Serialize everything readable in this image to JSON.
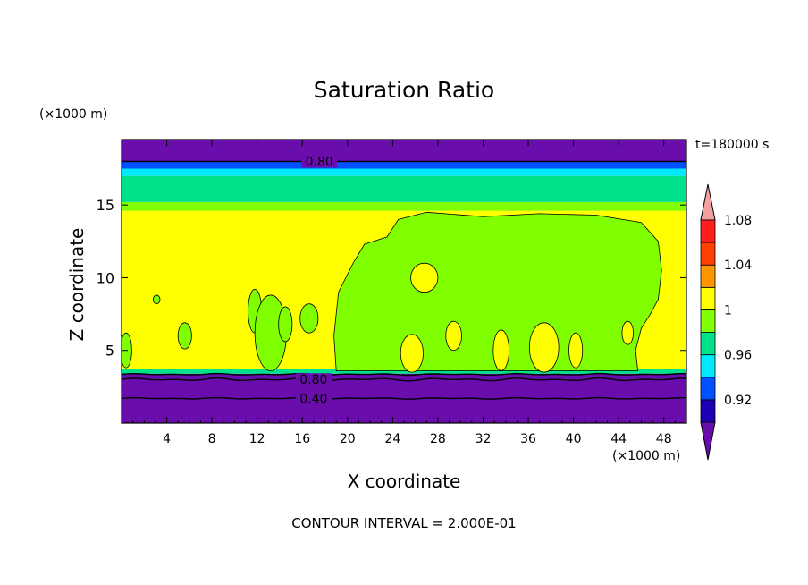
{
  "chart_data": {
    "type": "heatmap",
    "title": "Saturation Ratio",
    "xlabel": "X coordinate",
    "ylabel": "Z coordinate",
    "x_unit": "(×1000 m)",
    "z_unit": "(×1000 m)",
    "time_label": "t=180000 s",
    "xlim": [
      0,
      50
    ],
    "ylim": [
      0,
      19.5
    ],
    "x_ticks": [
      4,
      8,
      12,
      16,
      20,
      24,
      28,
      32,
      36,
      40,
      44,
      48
    ],
    "y_ticks": [
      5,
      10,
      15
    ],
    "contour_labels": [
      {
        "text": "0.80",
        "x": 17.5,
        "z": 18.0
      },
      {
        "text": "0.80",
        "x": 17.0,
        "z": 3.0
      },
      {
        "text": "0.40",
        "x": 17.0,
        "z": 1.7
      }
    ],
    "contour_interval": "CONTOUR INTERVAL = 2.000E-01",
    "colorbar": {
      "labels": [
        "0.92",
        "0.96",
        "1",
        "1.04",
        "1.08"
      ],
      "levels": [
        0.9,
        0.92,
        0.94,
        0.96,
        0.98,
        1.0,
        1.02,
        1.04,
        1.06,
        1.08,
        1.1
      ],
      "colors": [
        "#6a0dad",
        "#1e00b4",
        "#0050ff",
        "#00eaff",
        "#00e28a",
        "#80ff00",
        "#ffff00",
        "#ff9600",
        "#ff4000",
        "#ff1e1e",
        "#f5a0a0"
      ]
    },
    "bands": [
      {
        "z0": 0.0,
        "z1": 3.4,
        "value": 0.8
      },
      {
        "z0": 3.4,
        "z1": 3.7,
        "value": 0.97
      },
      {
        "z0": 3.7,
        "z1": 14.6,
        "value": 1.01
      },
      {
        "z0": 14.6,
        "z1": 15.2,
        "value": 0.99
      },
      {
        "z0": 15.2,
        "z1": 17.0,
        "value": 0.96
      },
      {
        "z0": 17.0,
        "z1": 17.5,
        "value": 0.94
      },
      {
        "z0": 17.5,
        "z1": 18.0,
        "value": 0.92
      },
      {
        "z0": 18.0,
        "z1": 19.5,
        "value": 0.8
      }
    ],
    "subsaturated_region": {
      "value": 0.99,
      "outline": [
        [
          19,
          3.6
        ],
        [
          18.8,
          6
        ],
        [
          19.2,
          9
        ],
        [
          20.5,
          11
        ],
        [
          21.5,
          12.3
        ],
        [
          23.5,
          12.8
        ],
        [
          24.5,
          14
        ],
        [
          27,
          14.5
        ],
        [
          32,
          14.2
        ],
        [
          37,
          14.4
        ],
        [
          42,
          14.3
        ],
        [
          46,
          13.8
        ],
        [
          47.5,
          12.5
        ],
        [
          47.8,
          10.5
        ],
        [
          47.5,
          8.5
        ],
        [
          46.8,
          7.5
        ],
        [
          46,
          6.5
        ],
        [
          45.5,
          5
        ],
        [
          45.7,
          3.6
        ]
      ]
    },
    "moist_patches": [
      {
        "x": 26.8,
        "z": 10,
        "rx": 1.2,
        "rz": 1.0
      },
      {
        "x": 25.7,
        "z": 4.8,
        "rx": 1.0,
        "rz": 1.3
      },
      {
        "x": 29.4,
        "z": 6.0,
        "rx": 0.7,
        "rz": 1.0
      },
      {
        "x": 33.6,
        "z": 5.0,
        "rx": 0.7,
        "rz": 1.4
      },
      {
        "x": 37.4,
        "z": 5.2,
        "rx": 1.3,
        "rz": 1.7
      },
      {
        "x": 40.2,
        "z": 5.0,
        "rx": 0.6,
        "rz": 1.2
      },
      {
        "x": 44.8,
        "z": 6.2,
        "rx": 0.5,
        "rz": 0.8
      }
    ],
    "dry_patches": [
      {
        "x": 3.1,
        "z": 8.5,
        "rx": 0.3,
        "rz": 0.3
      },
      {
        "x": 5.6,
        "z": 6.0,
        "rx": 0.6,
        "rz": 0.9
      },
      {
        "x": 11.8,
        "z": 7.7,
        "rx": 0.6,
        "rz": 1.5
      },
      {
        "x": 13.2,
        "z": 6.2,
        "rx": 1.4,
        "rz": 2.6
      },
      {
        "x": 14.5,
        "z": 6.8,
        "rx": 0.6,
        "rz": 1.2
      },
      {
        "x": 16.6,
        "z": 7.2,
        "rx": 0.8,
        "rz": 1.0
      },
      {
        "x": 0.4,
        "z": 5.0,
        "rx": 0.5,
        "rz": 1.2
      }
    ]
  }
}
